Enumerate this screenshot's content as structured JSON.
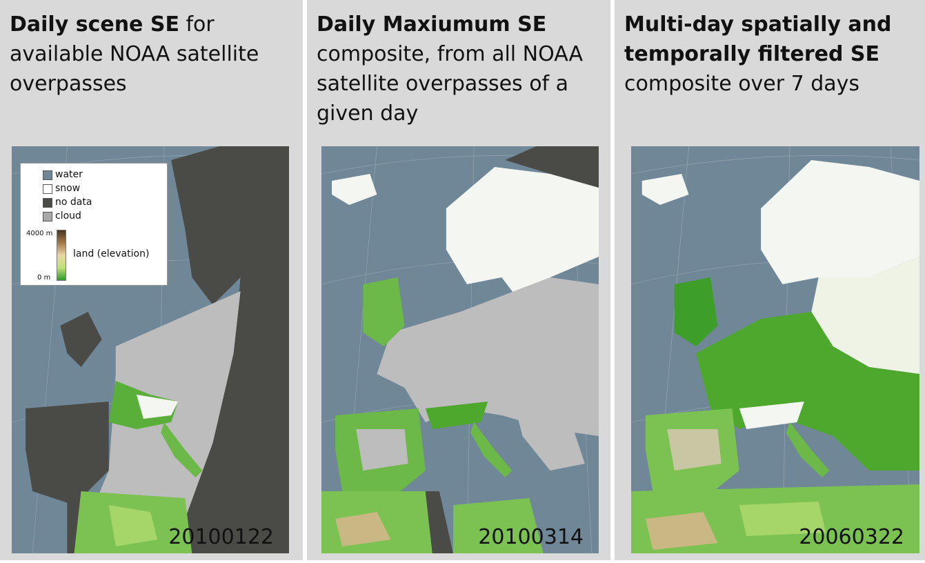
{
  "panels": [
    {
      "title_bold": "Daily scene SE",
      "title_rest": " for available NOAA satellite overpasses",
      "date": "20100122"
    },
    {
      "title_bold": "Daily Maxiumum SE",
      "title_rest": " composite, from all NOAA satellite overpasses of a given day",
      "date": "20100314"
    },
    {
      "title_bold": "Multi-day spatially and temporally filtered SE",
      "title_rest": " composite over 7 days",
      "date": "20060322"
    }
  ],
  "legend": {
    "items": [
      {
        "label": "water",
        "color": "#6f8797"
      },
      {
        "label": "snow",
        "color": "#ffffff"
      },
      {
        "label": "no data",
        "color": "#4a4a46"
      },
      {
        "label": "cloud",
        "color": "#a8a8a8"
      }
    ],
    "elevation_max": "4000 m",
    "elevation_min": "0 m",
    "elevation_label": "land (elevation)"
  },
  "colors": {
    "water": "#6f8797",
    "no_data": "#4a4a46",
    "cloud": "#bdbdbd",
    "land_low": "#4ea82e",
    "land_mid": "#a6d66a",
    "land_high": "#d9c58a",
    "snow": "#f4f6f2"
  }
}
